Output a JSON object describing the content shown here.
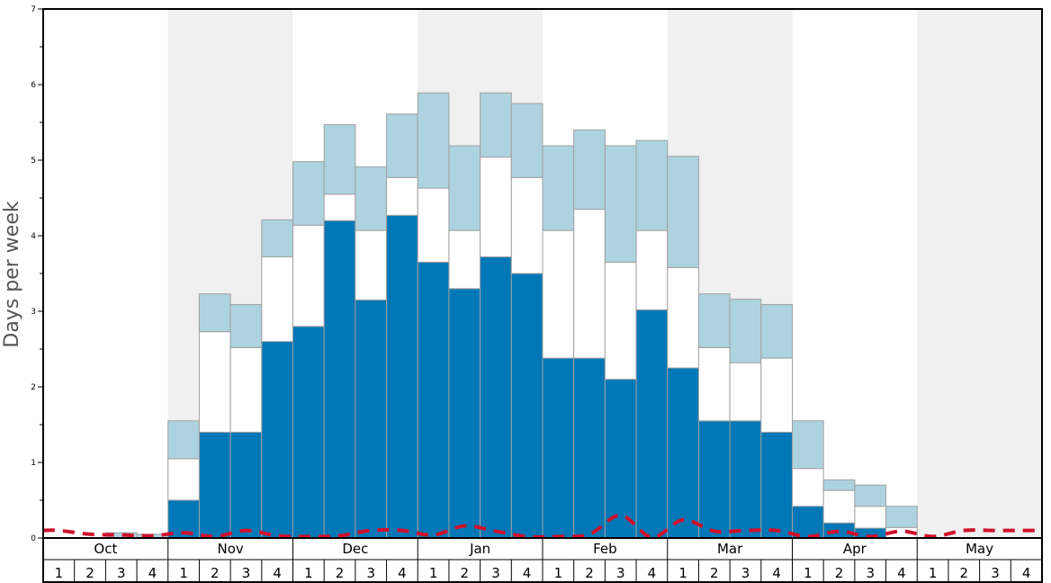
{
  "chart_data": {
    "type": "bar",
    "ylabel": "Days per week",
    "ylim": [
      0,
      7
    ],
    "yticks": [
      "0",
      "1",
      "2",
      "3",
      "4",
      "5",
      "6",
      "7"
    ],
    "months": [
      "Oct",
      "Nov",
      "Dec",
      "Jan",
      "Feb",
      "Mar",
      "Apr",
      "May"
    ],
    "week_labels": [
      "1",
      "2",
      "3",
      "4"
    ],
    "shaded_months": [
      "Nov",
      "Jan",
      "Mar",
      "May"
    ],
    "colors": {
      "dark": "#0077b6",
      "white": "#ffffff",
      "light": "#aed3e0",
      "line": "#d0102c",
      "shade": "#f0f0f0"
    },
    "categories": [
      "Oct 1",
      "Oct 2",
      "Oct 3",
      "Oct 4",
      "Nov 1",
      "Nov 2",
      "Nov 3",
      "Nov 4",
      "Dec 1",
      "Dec 2",
      "Dec 3",
      "Dec 4",
      "Jan 1",
      "Jan 2",
      "Jan 3",
      "Jan 4",
      "Feb 1",
      "Feb 2",
      "Feb 3",
      "Feb 4",
      "Mar 1",
      "Mar 2",
      "Mar 3",
      "Mar 4",
      "Apr 1",
      "Apr 2",
      "Apr 3",
      "Apr 4",
      "May 1",
      "May 2",
      "May 3",
      "May 4"
    ],
    "series": [
      {
        "values": [
          0,
          0,
          0,
          0,
          0.5,
          1.4,
          1.4,
          2.6,
          2.8,
          4.2,
          3.15,
          4.27,
          3.65,
          3.3,
          3.72,
          3.5,
          2.38,
          2.38,
          2.1,
          3.02,
          2.25,
          1.55,
          1.55,
          1.4,
          0.42,
          0.2,
          0.13,
          0,
          0,
          0,
          0,
          0
        ]
      },
      {
        "values": [
          0,
          0,
          0,
          0,
          1.05,
          2.73,
          2.52,
          3.72,
          4.14,
          4.55,
          4.07,
          4.77,
          4.63,
          4.07,
          5.04,
          4.77,
          4.07,
          4.35,
          3.65,
          4.07,
          3.58,
          2.52,
          2.32,
          2.38,
          0.92,
          0.63,
          0.42,
          0.14,
          0,
          0,
          0,
          0
        ]
      },
      {
        "values": [
          0,
          0,
          0.07,
          0.05,
          1.55,
          3.23,
          3.09,
          4.21,
          4.98,
          5.47,
          4.91,
          5.61,
          5.89,
          5.19,
          5.89,
          5.75,
          5.19,
          5.4,
          5.19,
          5.26,
          5.05,
          3.23,
          3.16,
          3.09,
          1.55,
          0.77,
          0.7,
          0.42,
          0,
          0,
          0,
          0
        ]
      }
    ],
    "line": [
      0.1,
      0.05,
      0.04,
      0.03,
      0.07,
      0.02,
      0.1,
      0.03,
      0.02,
      0.03,
      0.1,
      0.1,
      0.04,
      0.16,
      0.09,
      0.02,
      0.02,
      0.05,
      0.3,
      0.01,
      0.24,
      0.09,
      0.1,
      0.1,
      0.02,
      0.09,
      0.02,
      0.09,
      0.02,
      0.1,
      0.1,
      0.1
    ]
  }
}
